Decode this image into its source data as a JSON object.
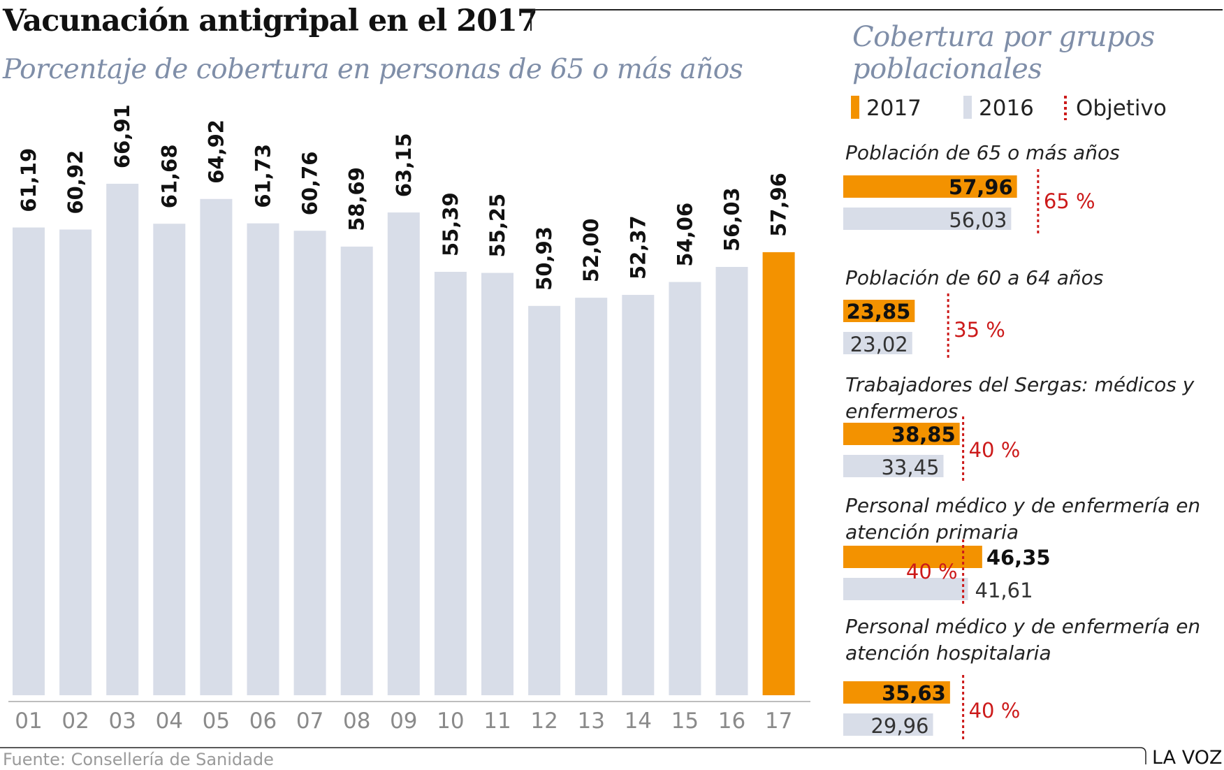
{
  "header": {
    "title": "Vacunación antigripal en el 2017",
    "subtitle": "Porcentaje de cobertura en personas de 65 o más años"
  },
  "side_panel": {
    "title_line1": "Cobertura por grupos",
    "title_line2": "poblacionales"
  },
  "legend": {
    "items": [
      {
        "label": "2017",
        "color": "#f39200",
        "marker": "bar"
      },
      {
        "label": "2016",
        "color": "#d8dde8",
        "marker": "bar"
      },
      {
        "label": "Objetivo",
        "color": "#cc1a1a",
        "marker": "dotted-line"
      }
    ]
  },
  "footer": {
    "source": "Fuente: Consellería de Sanidade",
    "brand": "LA VOZ"
  },
  "colors": {
    "highlight": "#f39200",
    "base": "#d8dde8",
    "target": "#cc1a1a",
    "title_accent": "#7f8ea8"
  },
  "chart_data": [
    {
      "type": "bar",
      "title": "Vacunación antigripal en el 2017",
      "subtitle": "Porcentaje de cobertura en personas de 65 o más años",
      "categories": [
        "01",
        "02",
        "03",
        "04",
        "05",
        "06",
        "07",
        "08",
        "09",
        "10",
        "11",
        "12",
        "13",
        "14",
        "15",
        "16",
        "17"
      ],
      "values": [
        61.19,
        60.92,
        66.91,
        61.68,
        64.92,
        61.73,
        60.76,
        58.69,
        63.15,
        55.39,
        55.25,
        50.93,
        52.0,
        52.37,
        54.06,
        56.03,
        57.96
      ],
      "value_labels": [
        "61,19",
        "60,92",
        "66,91",
        "61,68",
        "64,92",
        "61,73",
        "60,76",
        "58,69",
        "63,15",
        "55,39",
        "55,25",
        "50,93",
        "52,00",
        "52,37",
        "54,06",
        "56,03",
        "57,96"
      ],
      "highlight_index": 16,
      "ylim": [
        0,
        67
      ],
      "grid": false,
      "xlabel": "",
      "ylabel": ""
    },
    {
      "type": "bar",
      "orientation": "horizontal",
      "title": "Cobertura por grupos poblacionales",
      "series": [
        {
          "name": "2017"
        },
        {
          "name": "2016"
        }
      ],
      "groups": [
        {
          "label_lines": [
            "Población de 65 o más años"
          ],
          "v2017": 57.96,
          "v2017_label": "57,96",
          "v2016": 56.03,
          "v2016_label": "56,03",
          "target": 65,
          "target_label": "65 %"
        },
        {
          "label_lines": [
            "Población de 60 a 64 años"
          ],
          "v2017": 23.85,
          "v2017_label": "23,85",
          "v2016": 23.02,
          "v2016_label": "23,02",
          "target": 35,
          "target_label": "35 %"
        },
        {
          "label_lines": [
            "Trabajadores del Sergas: médicos y",
            "enfermeros"
          ],
          "v2017": 38.85,
          "v2017_label": "38,85",
          "v2016": 33.45,
          "v2016_label": "33,45",
          "target": 40,
          "target_label": "40 %"
        },
        {
          "label_lines": [
            "Personal médico y de enfermería en",
            "atención primaria"
          ],
          "v2017": 46.35,
          "v2017_label": "46,35",
          "v2016": 41.61,
          "v2016_label": "41,61",
          "target": 40,
          "target_label": "40 %"
        },
        {
          "label_lines": [
            "Personal médico y de enfermería en",
            "atención hospitalaria"
          ],
          "v2017": 35.63,
          "v2017_label": "35,63",
          "v2016": 29.96,
          "v2016_label": "29,96",
          "target": 40,
          "target_label": "40 %"
        }
      ]
    }
  ]
}
